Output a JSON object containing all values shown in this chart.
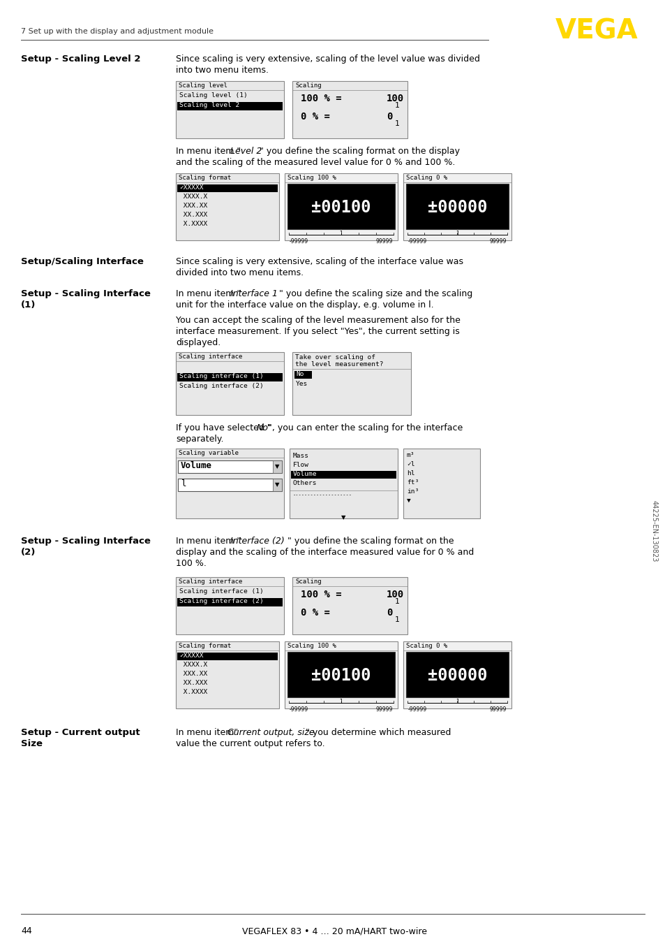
{
  "page_number": "44",
  "footer_text": "VEGAFLEX 83 • 4 … 20 mA/HART two-wire",
  "header_text": "7 Set up with the display and adjustment module",
  "side_text": "44225-EN-130823",
  "vega_color": "#FFD700",
  "bg_color": "#FFFFFF"
}
